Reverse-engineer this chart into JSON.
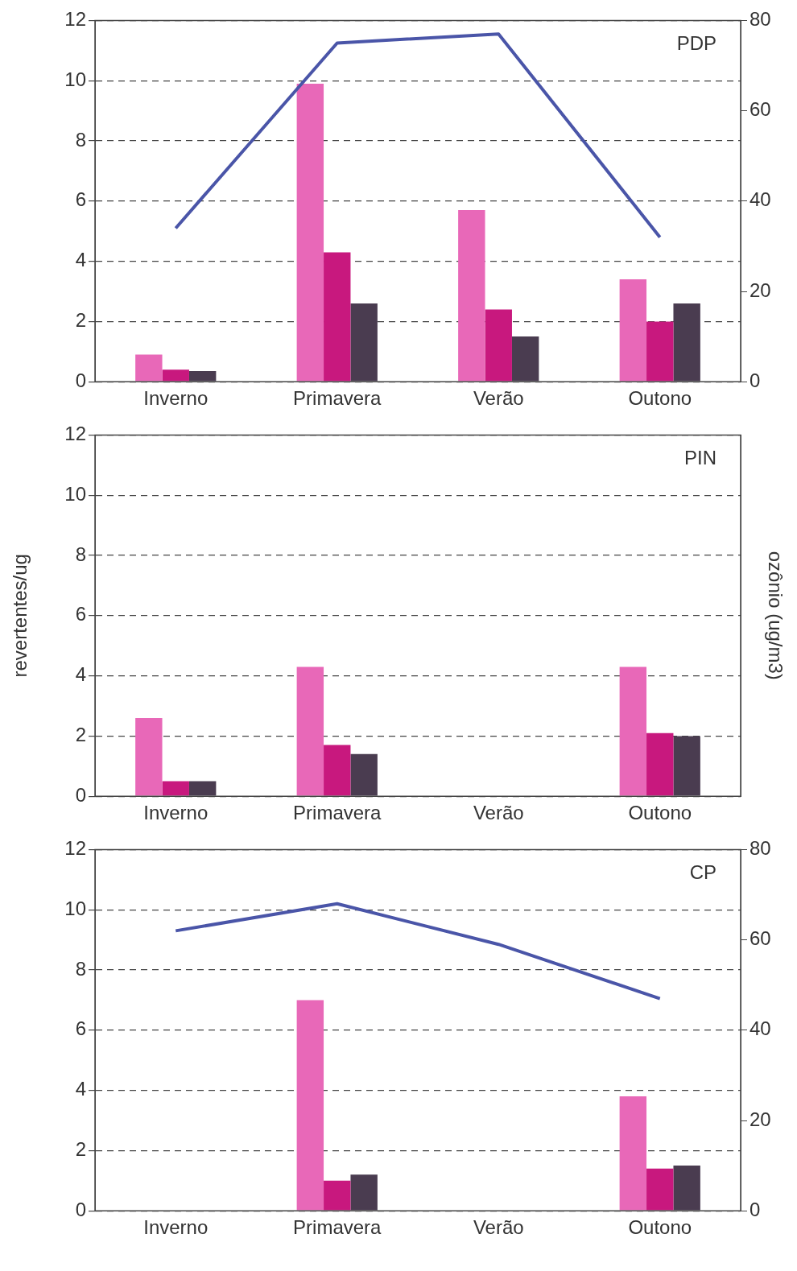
{
  "chart_data": [
    {
      "type": "bar",
      "categories": [
        "Inverno",
        "Primavera",
        "Verão",
        "Outono"
      ],
      "series": [
        {
          "color": "#e868b8",
          "values": [
            0.9,
            9.9,
            5.7,
            3.4
          ]
        },
        {
          "color": "#c8187e",
          "values": [
            0.4,
            4.3,
            2.4,
            2.0
          ]
        },
        {
          "color": "#4a3c50",
          "values": [
            0.35,
            2.6,
            1.5,
            2.6
          ]
        },
        {
          "type": "line",
          "axis": "y2",
          "color": "#4a55a8",
          "values": [
            34,
            75,
            77,
            32
          ]
        }
      ],
      "ylim": [
        0,
        12
      ],
      "yticks": [
        0,
        2,
        4,
        6,
        8,
        10,
        12
      ],
      "y2lim": [
        0,
        80
      ],
      "y2ticks": [
        0,
        20,
        40,
        60,
        80
      ],
      "grid": "y",
      "annotations": [
        "PDP"
      ]
    },
    {
      "type": "bar",
      "categories": [
        "Inverno",
        "Primavera",
        "Verão",
        "Outono"
      ],
      "series": [
        {
          "color": "#e868b8",
          "values": [
            2.6,
            4.3,
            null,
            4.3
          ]
        },
        {
          "color": "#c8187e",
          "values": [
            0.5,
            1.7,
            null,
            2.1
          ]
        },
        {
          "color": "#4a3c50",
          "values": [
            0.5,
            1.4,
            null,
            2.0
          ]
        }
      ],
      "ylim": [
        0,
        12
      ],
      "yticks": [
        0,
        2,
        4,
        6,
        8,
        10,
        12
      ],
      "ylabel": "revertentes/ug",
      "y2label": "ozônio (ug/m3)",
      "grid": "y",
      "annotations": [
        "PIN"
      ]
    },
    {
      "type": "bar",
      "categories": [
        "Inverno",
        "Primavera",
        "Verão",
        "Outono"
      ],
      "series": [
        {
          "color": "#e868b8",
          "values": [
            null,
            7.0,
            null,
            3.8
          ]
        },
        {
          "color": "#c8187e",
          "values": [
            null,
            1.0,
            null,
            1.4
          ]
        },
        {
          "color": "#4a3c50",
          "values": [
            null,
            1.2,
            null,
            1.5
          ]
        },
        {
          "type": "line",
          "axis": "y2",
          "color": "#4a55a8",
          "values": [
            62,
            68,
            59,
            47
          ]
        }
      ],
      "ylim": [
        0,
        12
      ],
      "yticks": [
        0,
        2,
        4,
        6,
        8,
        10,
        12
      ],
      "y2lim": [
        0,
        80
      ],
      "y2ticks": [
        0,
        20,
        40,
        60,
        80
      ],
      "grid": "y",
      "annotations": [
        "CP"
      ]
    }
  ]
}
